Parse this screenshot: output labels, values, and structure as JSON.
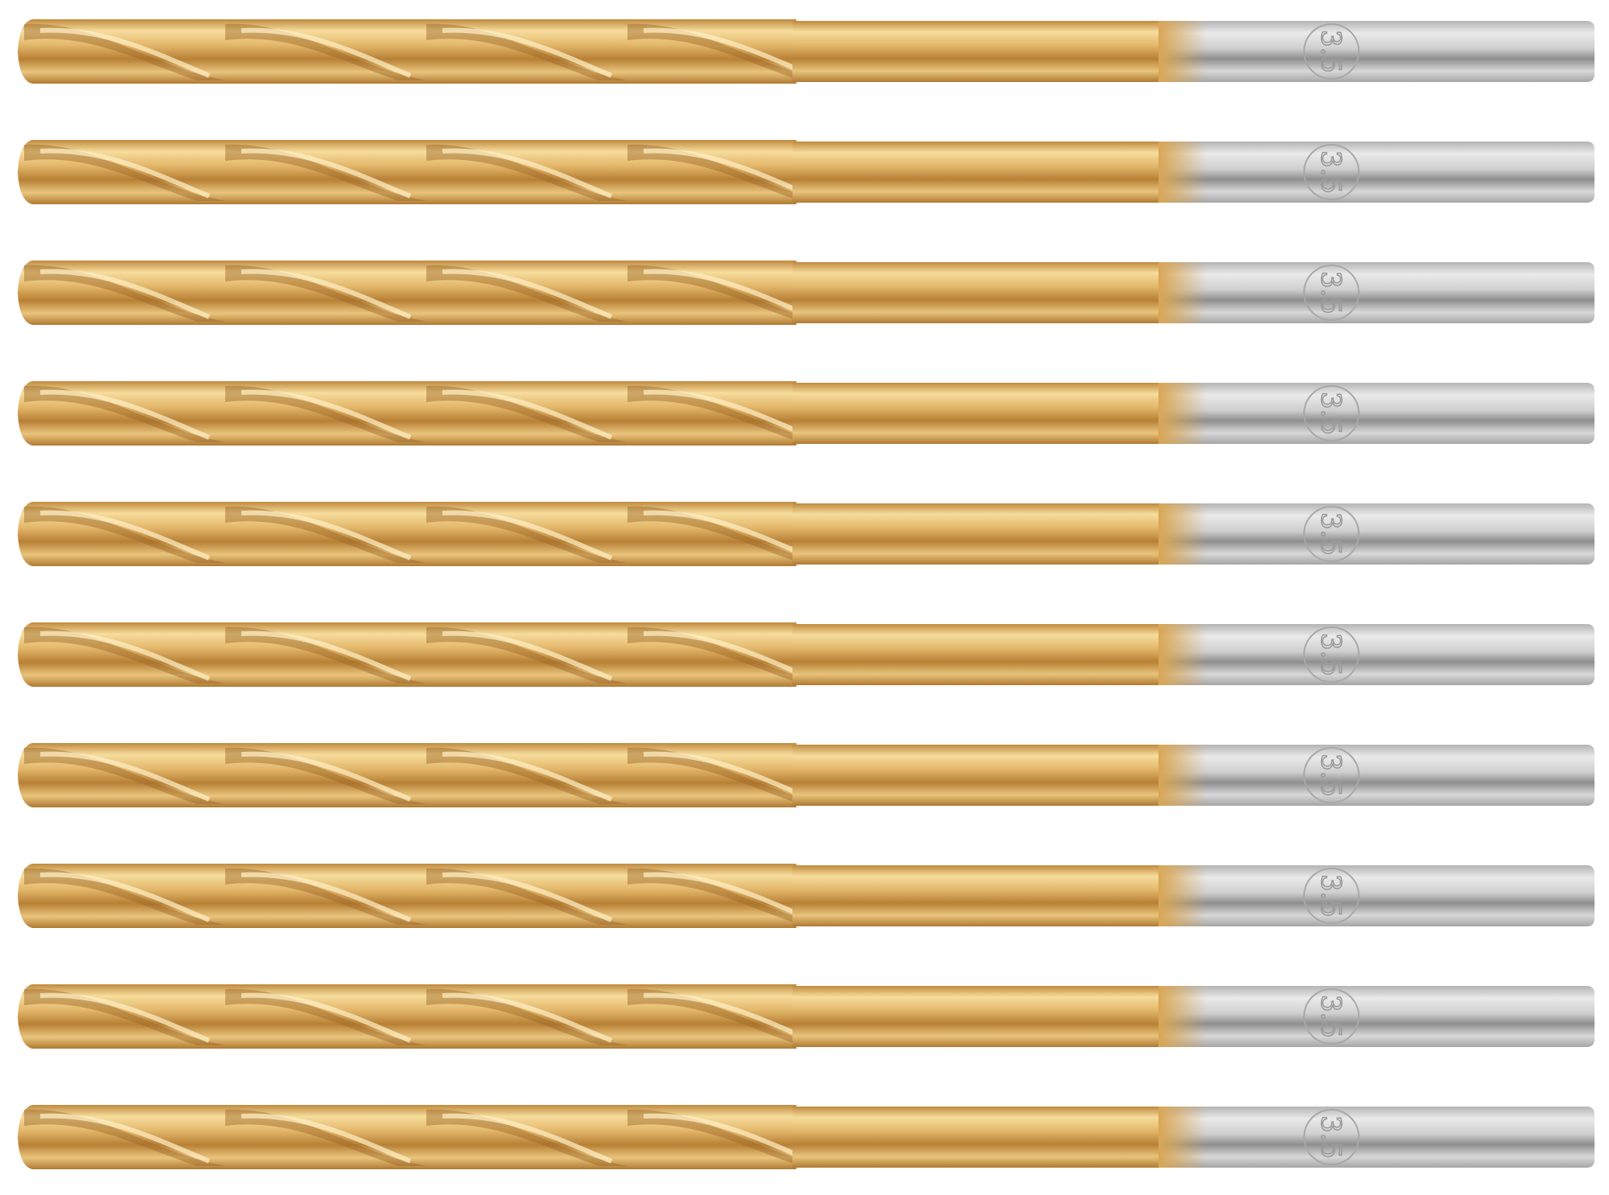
{
  "image": {
    "subject": "drill-bit-set",
    "bit_count": 10,
    "colors": {
      "background": "#ffffff",
      "titanium_gold_light": "#f3d48e",
      "titanium_gold_mid": "#d9a655",
      "titanium_gold_dark": "#a8732c",
      "steel_light": "#e2e2e2",
      "steel_mid": "#bdbdbd",
      "steel_dark": "#8a8a8a"
    },
    "shank_engraving": {
      "size": "3.5"
    }
  }
}
